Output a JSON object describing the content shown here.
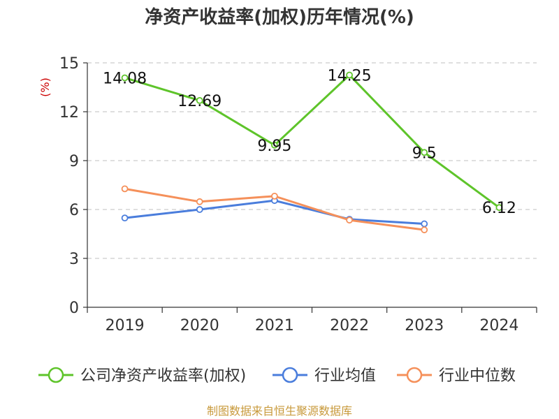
{
  "chart_data": {
    "type": "line",
    "title": "净资产收益率(加权)历年情况(%)",
    "ylabel": "(%)",
    "xlabel": "",
    "categories": [
      "2019",
      "2020",
      "2021",
      "2022",
      "2023",
      "2024"
    ],
    "ylim": [
      0,
      15
    ],
    "yticks": [
      0,
      3,
      6,
      9,
      12,
      15
    ],
    "grid": true,
    "legend_position": "bottom",
    "series": [
      {
        "name": "公司净资产收益率(加权)",
        "color": "#5ec42a",
        "values": [
          14.08,
          12.69,
          9.95,
          14.25,
          9.5,
          6.12
        ],
        "labels": [
          "14.08",
          "12.69",
          "9.95",
          "14.25",
          "9.5",
          "6.12"
        ]
      },
      {
        "name": "行业均值",
        "color": "#4a7ddc",
        "values": [
          5.48,
          6.0,
          6.55,
          5.4,
          5.12,
          null
        ]
      },
      {
        "name": "行业中位数",
        "color": "#f5905a",
        "values": [
          7.27,
          6.48,
          6.82,
          5.35,
          4.75,
          null
        ]
      }
    ],
    "source": "制图数据来自恒生聚源数据库"
  }
}
